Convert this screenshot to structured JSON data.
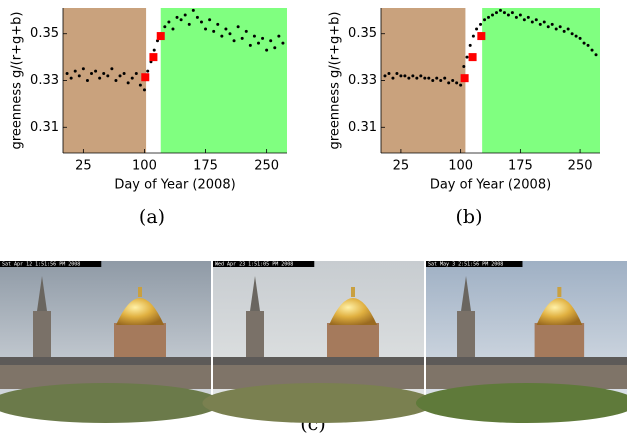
{
  "chart_data": [
    {
      "type": "scatter",
      "x_label": "Day of Year (2008)",
      "y_label": "greenness g/(r+g+b)",
      "xlim": [
        0,
        275
      ],
      "ylim": [
        0.299,
        0.361
      ],
      "xticks": [
        25,
        100,
        175,
        250
      ],
      "yticks": [
        0.31,
        0.33,
        0.35
      ],
      "regions": [
        {
          "from": 0,
          "to": 102,
          "color": "#c9a27d"
        },
        {
          "from": 120,
          "to": 275,
          "color": "#80ff80"
        }
      ],
      "color": "#000000",
      "x": [
        5,
        10,
        15,
        20,
        25,
        30,
        35,
        40,
        45,
        50,
        55,
        60,
        65,
        70,
        75,
        80,
        85,
        90,
        95,
        100,
        104,
        108,
        112,
        116,
        120,
        125,
        130,
        135,
        140,
        145,
        150,
        155,
        160,
        165,
        170,
        175,
        180,
        185,
        190,
        195,
        200,
        205,
        210,
        215,
        220,
        225,
        230,
        235,
        240,
        245,
        250,
        255,
        260,
        265,
        270
      ],
      "values": [
        0.333,
        0.331,
        0.334,
        0.332,
        0.335,
        0.33,
        0.333,
        0.334,
        0.331,
        0.333,
        0.332,
        0.335,
        0.33,
        0.332,
        0.333,
        0.329,
        0.331,
        0.333,
        0.328,
        0.326,
        0.334,
        0.338,
        0.343,
        0.347,
        0.35,
        0.353,
        0.355,
        0.352,
        0.357,
        0.356,
        0.358,
        0.354,
        0.36,
        0.357,
        0.355,
        0.352,
        0.356,
        0.351,
        0.354,
        0.349,
        0.352,
        0.35,
        0.347,
        0.353,
        0.348,
        0.351,
        0.345,
        0.349,
        0.346,
        0.348,
        0.343,
        0.347,
        0.344,
        0.349,
        0.346
      ],
      "highlight": {
        "color": "#ff0000",
        "x": [
          101,
          111,
          120
        ],
        "values": [
          0.3314,
          0.34,
          0.349
        ]
      }
    },
    {
      "type": "scatter",
      "x_label": "Day of Year (2008)",
      "y_label": "greenness g/(r+g+b)",
      "xlim": [
        0,
        275
      ],
      "ylim": [
        0.299,
        0.361
      ],
      "xticks": [
        25,
        100,
        175,
        250
      ],
      "yticks": [
        0.31,
        0.33,
        0.35
      ],
      "regions": [
        {
          "from": 0,
          "to": 106,
          "color": "#c9a27d"
        },
        {
          "from": 127,
          "to": 275,
          "color": "#80ff80"
        }
      ],
      "color": "#000000",
      "x": [
        5,
        10,
        15,
        20,
        25,
        30,
        35,
        40,
        45,
        50,
        55,
        60,
        65,
        70,
        75,
        80,
        85,
        90,
        95,
        100,
        104,
        108,
        112,
        116,
        120,
        125,
        130,
        135,
        140,
        145,
        150,
        155,
        160,
        165,
        170,
        175,
        180,
        185,
        190,
        195,
        200,
        205,
        210,
        215,
        220,
        225,
        230,
        235,
        240,
        245,
        250,
        255,
        260,
        265,
        270
      ],
      "values": [
        0.332,
        0.333,
        0.331,
        0.333,
        0.332,
        0.332,
        0.331,
        0.332,
        0.331,
        0.332,
        0.331,
        0.331,
        0.33,
        0.331,
        0.33,
        0.331,
        0.329,
        0.33,
        0.329,
        0.328,
        0.336,
        0.34,
        0.345,
        0.349,
        0.352,
        0.354,
        0.356,
        0.357,
        0.358,
        0.359,
        0.36,
        0.359,
        0.358,
        0.359,
        0.357,
        0.358,
        0.356,
        0.357,
        0.355,
        0.356,
        0.354,
        0.355,
        0.353,
        0.354,
        0.352,
        0.353,
        0.351,
        0.352,
        0.35,
        0.349,
        0.348,
        0.346,
        0.345,
        0.343,
        0.341
      ],
      "highlight": {
        "color": "#ff0000",
        "x": [
          105,
          115,
          126
        ],
        "values": [
          0.331,
          0.34,
          0.349
        ]
      }
    }
  ],
  "captions": [
    "(a)",
    "(b)",
    "(c)"
  ],
  "photos": [
    {
      "timestamp": "Sat Apr 12  1:51:56 PM 2008"
    },
    {
      "timestamp": "Wed Apr 23  1:51:05 PM 2008"
    },
    {
      "timestamp": "Sat May  3  2:51:56 PM 2008"
    }
  ]
}
